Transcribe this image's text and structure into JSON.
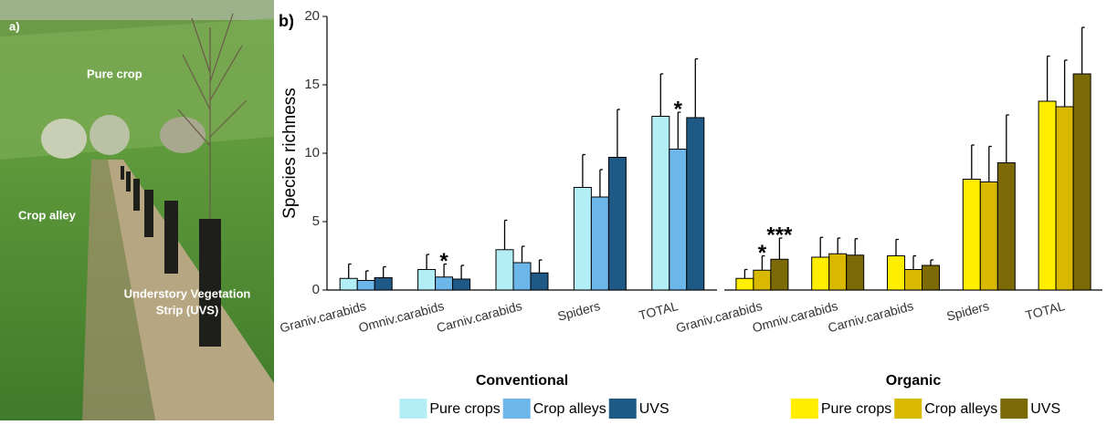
{
  "photo": {
    "panel_label": "a)",
    "pure_crop": "Pure crop",
    "crop_alley": "Crop alley",
    "uvs": [
      "Understory Vegetation",
      "Strip (UVS)"
    ]
  },
  "chart_data": [
    {
      "type": "bar",
      "panel_label": "b)",
      "y_label": "Species richness",
      "title": "Conventional",
      "categories": [
        "Graniv.carabids",
        "Omniv.carabids",
        "Carniv.carabids",
        "Spiders",
        "TOTAL"
      ],
      "series": [
        {
          "name": "Pure crops",
          "color": "#b3eef6",
          "values": [
            0.85,
            1.5,
            2.95,
            7.5,
            12.7
          ],
          "errors": [
            1.05,
            1.1,
            2.15,
            2.4,
            3.1
          ]
        },
        {
          "name": "Crop alleys",
          "color": "#6cb6ea",
          "values": [
            0.7,
            0.95,
            2.0,
            6.8,
            10.3
          ],
          "errors": [
            0.7,
            0.95,
            1.2,
            2.0,
            2.7
          ]
        },
        {
          "name": "UVS",
          "color": "#1f5a86",
          "values": [
            0.9,
            0.8,
            1.25,
            9.7,
            12.6
          ],
          "errors": [
            0.8,
            1.0,
            0.95,
            3.5,
            4.3
          ]
        }
      ],
      "annotations": [
        {
          "text": "*",
          "category": "Omniv.carabids",
          "series": "Crop alleys"
        },
        {
          "text": "*",
          "category": "TOTAL",
          "series": "Crop alleys"
        }
      ],
      "ylim": [
        0,
        20
      ],
      "yticks": [
        0,
        5,
        10,
        15,
        20
      ]
    },
    {
      "type": "bar",
      "title": "Organic",
      "categories": [
        "Graniv.carabids",
        "Omniv.carabids",
        "Carniv.carabids",
        "Spiders",
        "TOTAL"
      ],
      "series": [
        {
          "name": "Pure crops",
          "color": "#ffee00",
          "values": [
            0.85,
            2.4,
            2.5,
            8.1,
            13.8
          ],
          "errors": [
            0.65,
            1.45,
            1.2,
            2.5,
            3.3
          ]
        },
        {
          "name": "Crop alleys",
          "color": "#d8b900",
          "values": [
            1.45,
            2.65,
            1.5,
            7.9,
            13.4
          ],
          "errors": [
            1.05,
            1.15,
            1.0,
            2.6,
            3.4
          ]
        },
        {
          "name": "UVS",
          "color": "#7c6a06",
          "values": [
            2.25,
            2.55,
            1.8,
            9.3,
            15.8
          ],
          "errors": [
            1.55,
            1.2,
            0.4,
            3.5,
            3.4
          ]
        }
      ],
      "annotations": [
        {
          "text": "*",
          "category": "Graniv.carabids",
          "series": "Crop alleys"
        },
        {
          "text": "***",
          "category": "Graniv.carabids",
          "series": "UVS"
        }
      ],
      "ylim": [
        0,
        20
      ]
    }
  ]
}
